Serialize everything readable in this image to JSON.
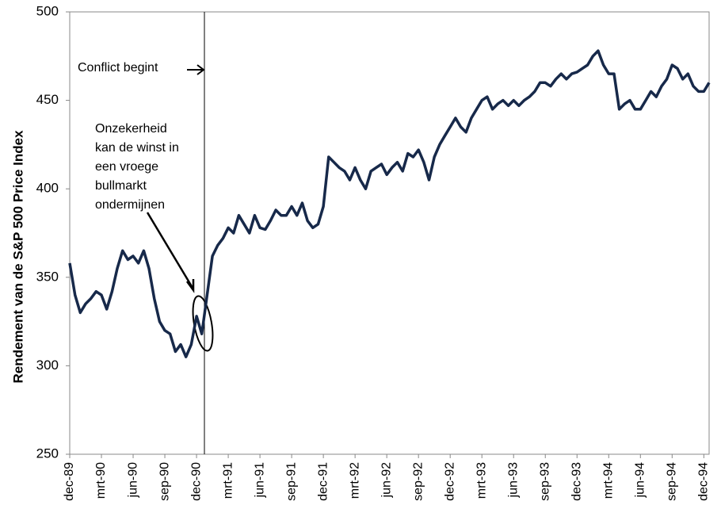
{
  "chart_data": {
    "type": "line",
    "y_label": "Rendement van de S&P 500 Price Index",
    "annotations": {
      "event": "Conflict begint",
      "note": [
        "Onzekerheid",
        "kan de winst in",
        "een vroege",
        "bullmarkt",
        "ondermijnen"
      ]
    },
    "categories": [
      "dec-89",
      null,
      null,
      null,
      null,
      null,
      "mrt-90",
      null,
      null,
      null,
      null,
      null,
      "jun-90",
      null,
      null,
      null,
      null,
      null,
      "sep-90",
      null,
      null,
      null,
      null,
      null,
      "dec-90",
      null,
      null,
      null,
      null,
      null,
      "mrt-91",
      null,
      null,
      null,
      null,
      null,
      "jun-91",
      null,
      null,
      null,
      null,
      null,
      "sep-91",
      null,
      null,
      null,
      null,
      null,
      "dec-91",
      null,
      null,
      null,
      null,
      null,
      "mrt-92",
      null,
      null,
      null,
      null,
      null,
      "jun-92",
      null,
      null,
      null,
      null,
      null,
      "sep-92",
      null,
      null,
      null,
      null,
      null,
      "dec-92",
      null,
      null,
      null,
      null,
      null,
      "mrt-93",
      null,
      null,
      null,
      null,
      null,
      "jun-93",
      null,
      null,
      null,
      null,
      null,
      "sep-93",
      null,
      null,
      null,
      null,
      null,
      "dec-93",
      null,
      null,
      null,
      null,
      null,
      "mrt-94",
      null,
      null,
      null,
      null,
      null,
      "jun-94",
      null,
      null,
      null,
      null,
      null,
      "sep-94",
      null,
      null,
      null,
      null,
      null,
      "dec-94",
      null
    ],
    "series": [
      {
        "name": "S&P 500",
        "color": "#17294a",
        "values": [
          358,
          340,
          330,
          335,
          338,
          342,
          340,
          332,
          342,
          355,
          365,
          360,
          362,
          358,
          365,
          355,
          338,
          325,
          320,
          318,
          308,
          312,
          305,
          312,
          328,
          318,
          340,
          362,
          368,
          372,
          378,
          375,
          385,
          380,
          375,
          385,
          378,
          377,
          382,
          388,
          385,
          385,
          390,
          385,
          392,
          382,
          378,
          380,
          390,
          418,
          415,
          412,
          410,
          405,
          412,
          405,
          400,
          410,
          412,
          414,
          408,
          412,
          415,
          410,
          420,
          418,
          422,
          415,
          405,
          418,
          425,
          430,
          435,
          440,
          435,
          432,
          440,
          445,
          450,
          452,
          445,
          448,
          450,
          447,
          450,
          447,
          450,
          452,
          455,
          460,
          460,
          458,
          462,
          465,
          462,
          465,
          466,
          468,
          470,
          475,
          478,
          470,
          465,
          465,
          445,
          448,
          450,
          445,
          445,
          450,
          455,
          452,
          458,
          462,
          470,
          468,
          462,
          465,
          458,
          455,
          455,
          460
        ]
      }
    ],
    "ylim": [
      250,
      500
    ],
    "yticks": [
      250,
      300,
      350,
      400,
      450,
      500
    ],
    "grid": false
  }
}
